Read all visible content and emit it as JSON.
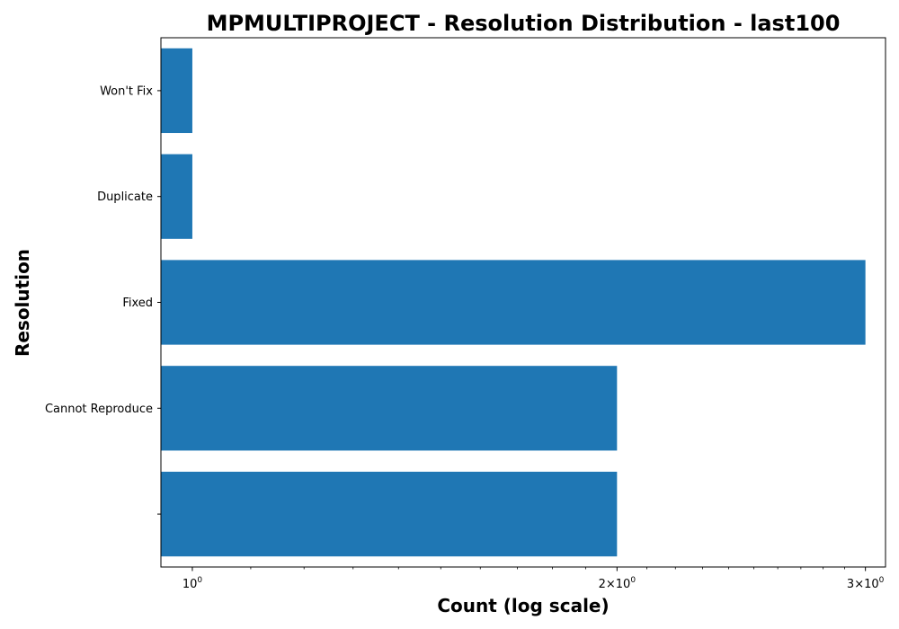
{
  "chart_data": {
    "type": "bar",
    "orientation": "horizontal",
    "title": "MPMULTIPROJECT - Resolution Distribution - last100",
    "xlabel": "Count (log scale)",
    "ylabel": "Resolution",
    "x_scale": "log",
    "xlim": [
      0.95,
      3.1
    ],
    "x_ticks": [
      {
        "value": 1,
        "base": "10",
        "exp": "0"
      },
      {
        "value": 2,
        "base": "2×10",
        "exp": "0"
      },
      {
        "value": 3,
        "base": "3×10",
        "exp": "0"
      }
    ],
    "categories": [
      "",
      "Cannot Reproduce",
      "Fixed",
      "Duplicate",
      "Won't Fix"
    ],
    "values": [
      2,
      2,
      3,
      1,
      1
    ],
    "bar_color": "#1f77b4",
    "grid": false
  }
}
